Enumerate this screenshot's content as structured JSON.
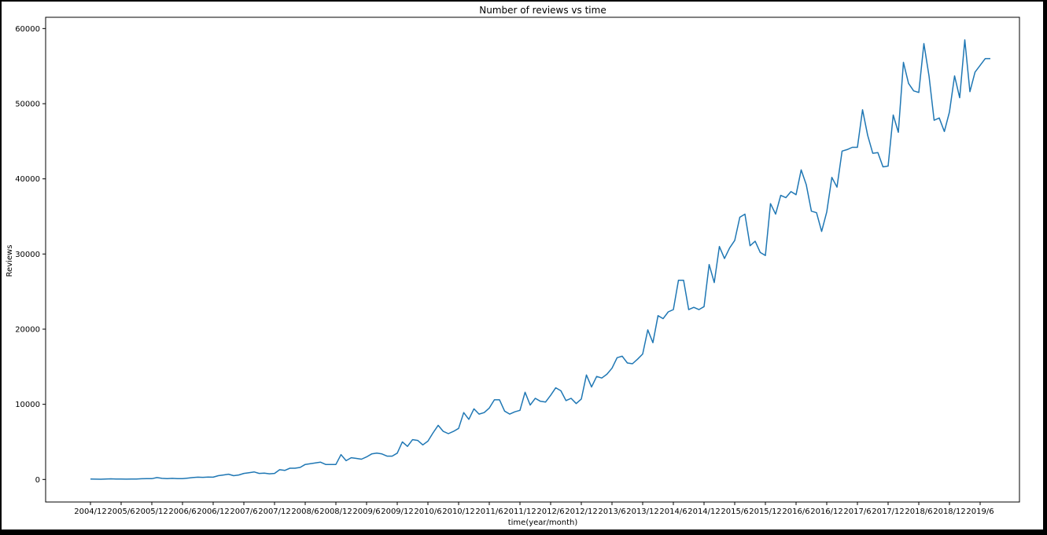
{
  "chart_data": {
    "type": "line",
    "title": "Number of reviews vs time",
    "xlabel": "time(year/month)",
    "ylabel": "Reviews",
    "ylim": [
      -3000,
      61500
    ],
    "yticks": [
      0,
      10000,
      20000,
      30000,
      40000,
      50000,
      60000
    ],
    "xticks": [
      "2004/12",
      "2005/6",
      "2005/12",
      "2006/6",
      "2006/12",
      "2007/6",
      "2007/12",
      "2008/6",
      "2008/12",
      "2009/6",
      "2009/12",
      "2010/6",
      "2010/12",
      "2011/6",
      "2011/12",
      "2012/6",
      "2012/12",
      "2013/6",
      "2013/12",
      "2014/6",
      "2014/12",
      "2015/6",
      "2015/12",
      "2016/6",
      "2016/12",
      "2017/6",
      "2017/12",
      "2018/6",
      "2018/12",
      "2019/6"
    ],
    "grid": false,
    "color": "#1f77b4",
    "series": [
      {
        "x": [
          "2004/12",
          "2005/1",
          "2005/2",
          "2005/3",
          "2005/4",
          "2005/5",
          "2005/6",
          "2005/7",
          "2005/8",
          "2005/9",
          "2005/10",
          "2005/11",
          "2005/12",
          "2006/1",
          "2006/2",
          "2006/3",
          "2006/4",
          "2006/5",
          "2006/6",
          "2006/7",
          "2006/8",
          "2006/9",
          "2006/10",
          "2006/11",
          "2006/12",
          "2007/1",
          "2007/2",
          "2007/3",
          "2007/4",
          "2007/5",
          "2007/6",
          "2007/7",
          "2007/8",
          "2007/9",
          "2007/10",
          "2007/11",
          "2007/12",
          "2008/1",
          "2008/2",
          "2008/3",
          "2008/4",
          "2008/5",
          "2008/6",
          "2008/7",
          "2008/8",
          "2008/9",
          "2008/10",
          "2008/11",
          "2008/12",
          "2009/1",
          "2009/2",
          "2009/3",
          "2009/4",
          "2009/5",
          "2009/6",
          "2009/7",
          "2009/8",
          "2009/9",
          "2009/10",
          "2009/11",
          "2009/12",
          "2010/1",
          "2010/2",
          "2010/3",
          "2010/4",
          "2010/5",
          "2010/6",
          "2010/7",
          "2010/8",
          "2010/9",
          "2010/10",
          "2010/11",
          "2010/12",
          "2011/1",
          "2011/2",
          "2011/3",
          "2011/4",
          "2011/5",
          "2011/6",
          "2011/7",
          "2011/8",
          "2011/9",
          "2011/10",
          "2011/11",
          "2011/12",
          "2012/1",
          "2012/2",
          "2012/3",
          "2012/4",
          "2012/5",
          "2012/6",
          "2012/7",
          "2012/8",
          "2012/9",
          "2012/10",
          "2012/11",
          "2012/12",
          "2013/1",
          "2013/2",
          "2013/3",
          "2013/4",
          "2013/5",
          "2013/6",
          "2013/7",
          "2013/8",
          "2013/9",
          "2013/10",
          "2013/11",
          "2013/12",
          "2014/1",
          "2014/2",
          "2014/3",
          "2014/4",
          "2014/5",
          "2014/6",
          "2014/7",
          "2014/8",
          "2014/9",
          "2014/10",
          "2014/11",
          "2014/12",
          "2015/1",
          "2015/2",
          "2015/3",
          "2015/4",
          "2015/5",
          "2015/6",
          "2015/7",
          "2015/8",
          "2015/9",
          "2015/10",
          "2015/11",
          "2015/12",
          "2016/1",
          "2016/2",
          "2016/3",
          "2016/4",
          "2016/5",
          "2016/6",
          "2016/7",
          "2016/8",
          "2016/9",
          "2016/10",
          "2016/11",
          "2016/12",
          "2017/1",
          "2017/2",
          "2017/3",
          "2017/4",
          "2017/5",
          "2017/6",
          "2017/7",
          "2017/8",
          "2017/9",
          "2017/10",
          "2017/11",
          "2017/12",
          "2018/1",
          "2018/2",
          "2018/3",
          "2018/4",
          "2018/5",
          "2018/6",
          "2018/7",
          "2018/8",
          "2018/9",
          "2018/10",
          "2018/11",
          "2018/12",
          "2019/1",
          "2019/2",
          "2019/3",
          "2019/4",
          "2019/5",
          "2019/6",
          "2019/7",
          "2019/8"
        ],
        "values": [
          50,
          40,
          30,
          50,
          80,
          60,
          50,
          40,
          50,
          60,
          90,
          120,
          100,
          250,
          150,
          100,
          150,
          120,
          120,
          180,
          250,
          300,
          280,
          320,
          300,
          500,
          600,
          700,
          500,
          600,
          800,
          900,
          1000,
          800,
          850,
          750,
          800,
          1300,
          1200,
          1500,
          1500,
          1600,
          2000,
          2100,
          2200,
          2300,
          2000,
          2000,
          2000,
          3300,
          2500,
          2900,
          2800,
          2700,
          3000,
          3400,
          3500,
          3400,
          3100,
          3100,
          3500,
          5000,
          4400,
          5300,
          5200,
          4600,
          5100,
          6200,
          7200,
          6400,
          6100,
          6400,
          6800,
          8900,
          8000,
          9400,
          8700,
          8900,
          9500,
          10600,
          10600,
          9100,
          8700,
          9000,
          9200,
          11600,
          9900,
          10800,
          10400,
          10300,
          11200,
          12200,
          11800,
          10500,
          10800,
          10100,
          10700,
          13900,
          12300,
          13700,
          13500,
          14000,
          14800,
          16200,
          16400,
          15500,
          15400,
          16000,
          16700,
          19900,
          18200,
          21800,
          21400,
          22300,
          22600,
          26500,
          26500,
          22600,
          22900,
          22600,
          23000,
          28600,
          26200,
          31000,
          29400,
          30800,
          31800,
          34900,
          35300,
          31100,
          31700,
          30200,
          29800,
          36700,
          35300,
          37800,
          37500,
          38300,
          37900,
          41200,
          39200,
          35700,
          35500,
          33000,
          35600,
          40200,
          38900,
          43700,
          43900,
          44200,
          44200,
          49200,
          45800,
          43400,
          43500,
          41600,
          41700,
          48500,
          46200,
          55500,
          52700,
          51700,
          51500,
          58000,
          53700,
          47800,
          48100,
          46300,
          48900,
          53700,
          50800,
          58500,
          51600,
          54200,
          55100,
          56000,
          56000
        ]
      }
    ]
  }
}
